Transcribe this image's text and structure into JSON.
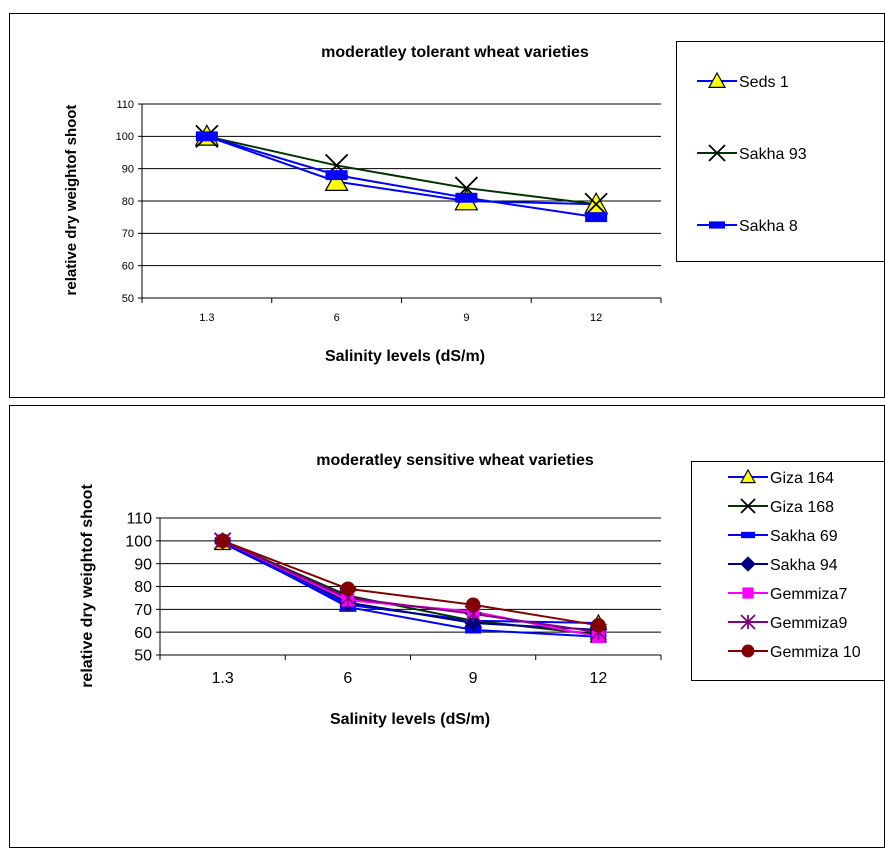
{
  "chart_data": [
    {
      "type": "line",
      "title": "moderatley tolerant wheat varieties",
      "xlabel": "Salinity levels (dS/m)",
      "ylabel": "relative dry weightof shoot",
      "categories": [
        "1.3",
        "6",
        "9",
        "12"
      ],
      "ylim": [
        50,
        110
      ],
      "yticks": [
        50,
        60,
        70,
        80,
        90,
        100,
        110
      ],
      "grid": true,
      "legend_position": "right",
      "series": [
        {
          "name": "Seds 1",
          "values": [
            100,
            86,
            80,
            79
          ],
          "color": "#0000FF",
          "marker": "triangle",
          "marker_color": "#FFFF00"
        },
        {
          "name": "Sakha 93",
          "values": [
            100,
            91,
            84,
            79
          ],
          "color": "#003300",
          "marker": "x",
          "marker_color": "#000000"
        },
        {
          "name": "Sakha 8",
          "values": [
            100,
            88,
            81,
            75
          ],
          "color": "#0000FF",
          "marker": "dash",
          "marker_color": "#0000FF"
        }
      ]
    },
    {
      "type": "line",
      "title": "moderatley sensitive wheat varieties",
      "xlabel": "Salinity levels (dS/m)",
      "ylabel": "relative dry weightof shoot",
      "categories": [
        "1.3",
        "6",
        "9",
        "12"
      ],
      "ylim": [
        50,
        110
      ],
      "yticks": [
        50,
        60,
        70,
        80,
        90,
        100,
        110
      ],
      "grid": true,
      "legend_position": "right",
      "series": [
        {
          "name": "Giza 164",
          "values": [
            99,
            72,
            65,
            64
          ],
          "color": "#0000FF",
          "marker": "triangle",
          "marker_color": "#FFFF00"
        },
        {
          "name": "Giza 168",
          "values": [
            100,
            76,
            65,
            59
          ],
          "color": "#003300",
          "marker": "x",
          "marker_color": "#000000"
        },
        {
          "name": "Sakha 69",
          "values": [
            100,
            71,
            61,
            58
          ],
          "color": "#0000FF",
          "marker": "dash",
          "marker_color": "#0000FF"
        },
        {
          "name": "Sakha 94",
          "values": [
            100,
            73,
            64,
            61
          ],
          "color": "#000080",
          "marker": "diamond",
          "marker_color": "#000080"
        },
        {
          "name": "Gemmiza7",
          "values": [
            100,
            74,
            69,
            58
          ],
          "color": "#FF00FF",
          "marker": "square",
          "marker_color": "#FF00FF"
        },
        {
          "name": "Gemmiza9",
          "values": [
            100,
            75,
            68,
            60
          ],
          "color": "#800080",
          "marker": "star",
          "marker_color": "#800080"
        },
        {
          "name": "Gemmiza 10",
          "values": [
            100,
            79,
            72,
            63
          ],
          "color": "#800000",
          "marker": "circle",
          "marker_color": "#800000"
        }
      ]
    }
  ]
}
